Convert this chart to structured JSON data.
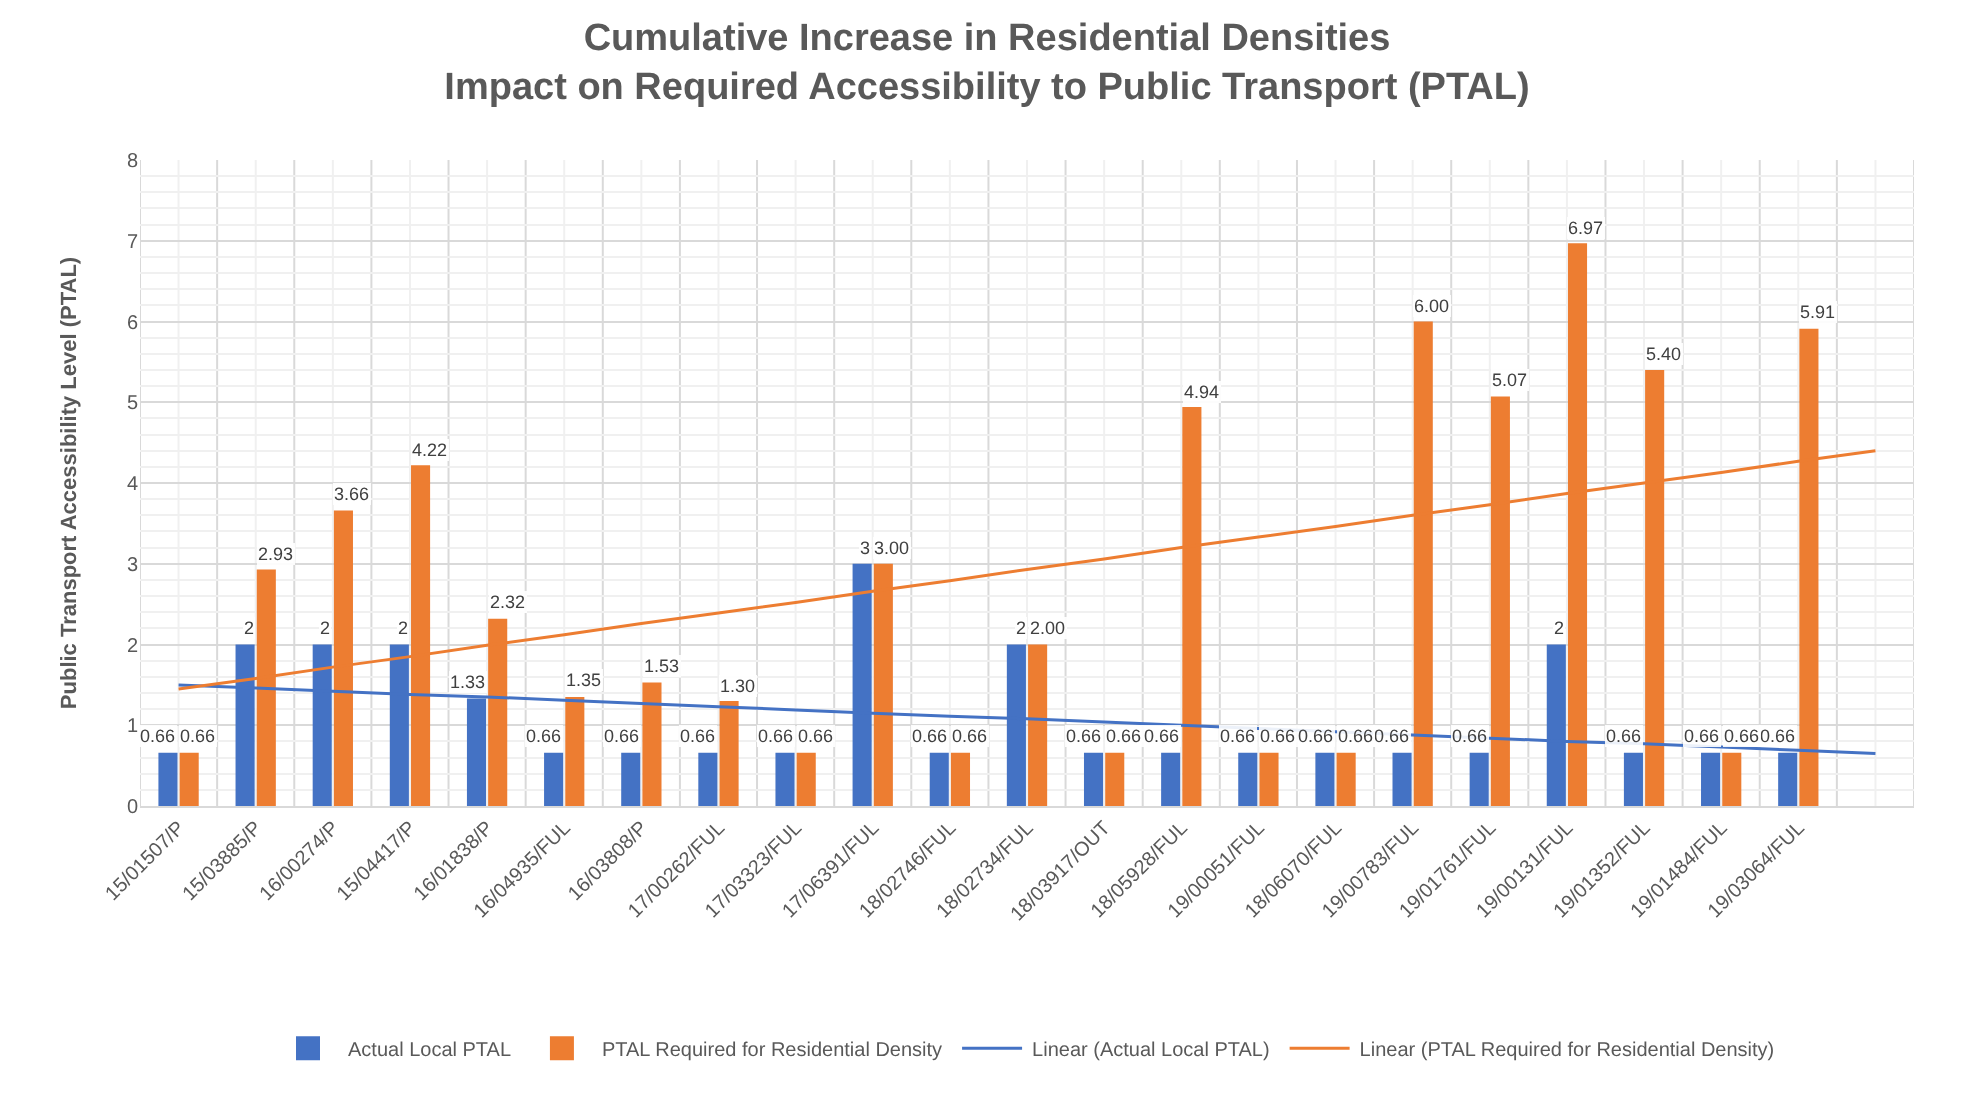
{
  "chart_data": {
    "type": "bar",
    "title": "Cumulative Increase in Residential Densities",
    "subtitle": "Impact on Required Accessibility to Public Transport (PTAL)",
    "ylabel": "Public Transport Accessibility Level (PTAL)",
    "categories": [
      "15/01507/P",
      "15/03885/P",
      "16/00274/P",
      "15/04417/P",
      "16/01838/P",
      "16/04935/FUL",
      "16/03808/P",
      "17/00262/FUL",
      "17/03323/FUL",
      "17/06391/FUL",
      "18/02746/FUL",
      "18/02734/FUL",
      "18/03917/OUT",
      "18/05928/FUL",
      "19/00051/FUL",
      "18/06070/FUL",
      "19/00783/FUL",
      "19/01761/FUL",
      "19/00131/FUL",
      "19/01352/FUL",
      "19/01484/FUL",
      "19/03064/FUL",
      null
    ],
    "series": [
      {
        "name": "Actual Local PTAL",
        "color": "#4472c4",
        "values": [
          0.66,
          2,
          2,
          2,
          1.33,
          0.66,
          0.66,
          0.66,
          0.66,
          3,
          0.66,
          2,
          0.66,
          0.66,
          0.66,
          0.66,
          0.66,
          0.66,
          2,
          0.66,
          0.66,
          0.66,
          null
        ],
        "value_labels": [
          "0.66",
          "2",
          "2",
          "2",
          "1.33",
          "0.66",
          "0.66",
          "0.66",
          "0.66",
          "3",
          "0.66",
          "2",
          "0.66",
          "0.66",
          "0.66",
          "0.66",
          "0.66",
          "0.66",
          "2",
          "0.66",
          "0.66",
          "0.66",
          null
        ]
      },
      {
        "name": "PTAL Required for Residential Density",
        "color": "#ed7d31",
        "values": [
          0.66,
          2.93,
          3.66,
          4.22,
          2.32,
          1.35,
          1.53,
          1.3,
          0.66,
          3.0,
          0.66,
          2.0,
          0.66,
          4.94,
          0.66,
          0.66,
          6.0,
          5.07,
          6.97,
          5.4,
          0.66,
          5.91,
          null
        ],
        "value_labels": [
          "0.66",
          "2.93",
          "3.66",
          "4.22",
          "2.32",
          "1.35",
          "1.53",
          "1.30",
          "0.66",
          "3.00",
          "0.66",
          "2.00",
          "0.66",
          "4.94",
          "0.66",
          "0.66",
          "6.00",
          "5.07",
          "6.97",
          "5.40",
          "0.66",
          "5.91",
          null
        ]
      },
      {
        "name": "Linear (Actual Local PTAL)",
        "type": "line",
        "color": "#4472c4",
        "values": [
          1.5,
          1.46,
          1.42,
          1.38,
          1.35,
          1.31,
          1.27,
          1.23,
          1.19,
          1.15,
          1.11,
          1.08,
          1.04,
          1.0,
          0.96,
          0.92,
          0.88,
          0.84,
          0.8,
          0.77,
          0.73,
          0.69,
          0.65
        ]
      },
      {
        "name": "Linear (PTAL Required for Residential Density)",
        "type": "line",
        "color": "#ed7d31",
        "values": [
          1.45,
          1.58,
          1.72,
          1.85,
          1.99,
          2.12,
          2.26,
          2.39,
          2.52,
          2.66,
          2.79,
          2.93,
          3.06,
          3.2,
          3.33,
          3.46,
          3.6,
          3.73,
          3.87,
          4.0,
          4.13,
          4.27,
          4.4
        ]
      }
    ],
    "ylim": [
      0,
      8
    ],
    "yticks": [
      0,
      1,
      2,
      3,
      4,
      5,
      6,
      7,
      8
    ],
    "grid": true,
    "legend": "bottom",
    "marker": "none",
    "line_style": "solid"
  }
}
